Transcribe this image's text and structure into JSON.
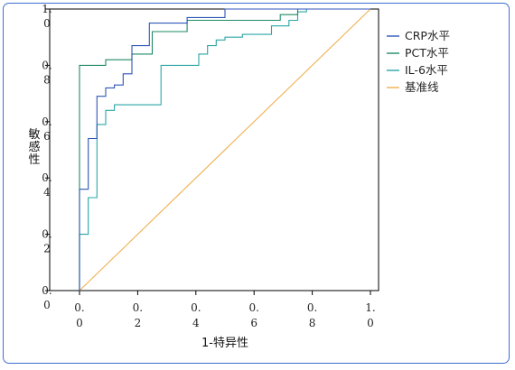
{
  "chart_data": {
    "type": "line",
    "title": "",
    "xlabel": "1-特异性",
    "ylabel": "敏感性",
    "xlim": [
      0,
      1
    ],
    "ylim": [
      0,
      1
    ],
    "grid": false,
    "legend_position": "right",
    "ticks": [
      {
        "value": 0.0,
        "line1": "0.",
        "line2": "0"
      },
      {
        "value": 0.2,
        "line1": "0.",
        "line2": "2"
      },
      {
        "value": 0.4,
        "line1": "0.",
        "line2": "4"
      },
      {
        "value": 0.6,
        "line1": "0.",
        "line2": "6"
      },
      {
        "value": 0.8,
        "line1": "0.",
        "line2": "8"
      },
      {
        "value": 1.0,
        "line1": "1.",
        "line2": "0"
      }
    ],
    "series": [
      {
        "name": "CRP水平",
        "color": "#2e56b8",
        "points": [
          [
            0,
            0
          ],
          [
            0,
            0.36
          ],
          [
            0.03,
            0.36
          ],
          [
            0.03,
            0.54
          ],
          [
            0.06,
            0.54
          ],
          [
            0.06,
            0.69
          ],
          [
            0.09,
            0.69
          ],
          [
            0.09,
            0.72
          ],
          [
            0.12,
            0.72
          ],
          [
            0.12,
            0.73
          ],
          [
            0.15,
            0.73
          ],
          [
            0.15,
            0.77
          ],
          [
            0.18,
            0.77
          ],
          [
            0.18,
            0.87
          ],
          [
            0.24,
            0.87
          ],
          [
            0.24,
            0.95
          ],
          [
            0.37,
            0.95
          ],
          [
            0.37,
            0.97
          ],
          [
            0.5,
            0.97
          ],
          [
            0.5,
            1.0
          ],
          [
            1.0,
            1.0
          ]
        ]
      },
      {
        "name": "PCT水平",
        "color": "#1e8a66",
        "points": [
          [
            0,
            0
          ],
          [
            0,
            0.8
          ],
          [
            0.09,
            0.8
          ],
          [
            0.09,
            0.82
          ],
          [
            0.18,
            0.82
          ],
          [
            0.18,
            0.84
          ],
          [
            0.25,
            0.84
          ],
          [
            0.25,
            0.92
          ],
          [
            0.37,
            0.92
          ],
          [
            0.37,
            0.96
          ],
          [
            0.69,
            0.96
          ],
          [
            0.69,
            0.98
          ],
          [
            0.75,
            0.98
          ],
          [
            0.75,
            1.0
          ],
          [
            1.0,
            1.0
          ]
        ]
      },
      {
        "name": "IL-6水平",
        "color": "#2aa6a6",
        "points": [
          [
            0,
            0
          ],
          [
            0,
            0.2
          ],
          [
            0.03,
            0.2
          ],
          [
            0.03,
            0.33
          ],
          [
            0.06,
            0.33
          ],
          [
            0.06,
            0.59
          ],
          [
            0.09,
            0.59
          ],
          [
            0.09,
            0.64
          ],
          [
            0.12,
            0.64
          ],
          [
            0.12,
            0.66
          ],
          [
            0.28,
            0.66
          ],
          [
            0.28,
            0.8
          ],
          [
            0.41,
            0.8
          ],
          [
            0.41,
            0.84
          ],
          [
            0.44,
            0.84
          ],
          [
            0.44,
            0.87
          ],
          [
            0.47,
            0.87
          ],
          [
            0.47,
            0.89
          ],
          [
            0.5,
            0.89
          ],
          [
            0.5,
            0.9
          ],
          [
            0.56,
            0.9
          ],
          [
            0.56,
            0.91
          ],
          [
            0.66,
            0.91
          ],
          [
            0.66,
            0.94
          ],
          [
            0.72,
            0.94
          ],
          [
            0.72,
            0.96
          ],
          [
            0.75,
            0.96
          ],
          [
            0.75,
            0.99
          ],
          [
            0.78,
            0.99
          ],
          [
            0.78,
            1.0
          ],
          [
            1.0,
            1.0
          ]
        ]
      },
      {
        "name": "基准线",
        "color": "#f0b050",
        "points": [
          [
            0,
            0
          ],
          [
            1,
            1
          ]
        ]
      }
    ]
  }
}
